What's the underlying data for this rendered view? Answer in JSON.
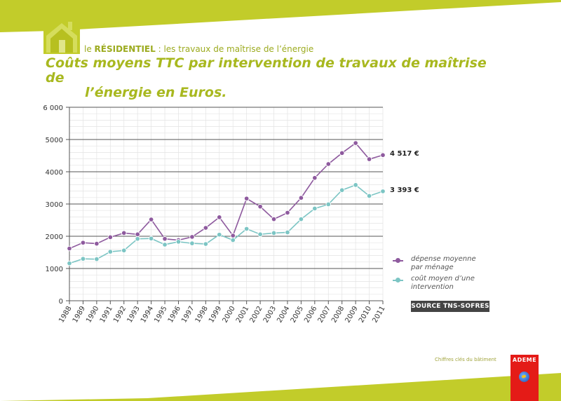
{
  "header": {
    "section_prefix": "le ",
    "section_name": "RÉSIDENTIEL",
    "section_suffix": " : les travaux de maîtrise de l’énergie",
    "title_line1": "Coûts moyens TTC par intervention de travaux de maîtrise de",
    "title_line2": "l’énergie en Euros."
  },
  "colors": {
    "accent": "#c2cc2a",
    "title": "#a8b81f",
    "series_menage": "#8e5a9e",
    "series_intervention": "#7cc5c4",
    "brand_red": "#e41b17",
    "badge": "#444444"
  },
  "icons": {
    "house": "house-icon",
    "globe": "globe-icon"
  },
  "chart_data": {
    "type": "line",
    "title": "",
    "xlabel": "",
    "ylabel": "",
    "ylim": [
      0,
      6000
    ],
    "yticks": [
      "0",
      "1000",
      "2000",
      "3000",
      "4000",
      "5000",
      "6 000"
    ],
    "ytick_values": [
      0,
      1000,
      2000,
      3000,
      4000,
      5000,
      6000
    ],
    "x": [
      "1988",
      "1989",
      "1990",
      "1991",
      "1992",
      "1993",
      "1994",
      "1995",
      "1996",
      "1997",
      "1998",
      "1999",
      "2000",
      "2001",
      "2002",
      "2003",
      "2004",
      "2005",
      "2006",
      "2007",
      "2008",
      "2009",
      "2010",
      "2011"
    ],
    "series": [
      {
        "name": "dépense moyenne par ménage",
        "legend_line1": "dépense moyenne",
        "legend_line2": "par ménage",
        "values": [
          1620,
          1800,
          1770,
          1970,
          2100,
          2060,
          2520,
          1920,
          1880,
          1980,
          2260,
          2590,
          2020,
          3170,
          2920,
          2530,
          2730,
          3190,
          3810,
          4240,
          4580,
          4890,
          4390,
          4517
        ],
        "end_label": "4 517 €"
      },
      {
        "name": "coût moyen d’une intervention",
        "legend_line1": "coût moyen d’une",
        "legend_line2": "intervention",
        "values": [
          1160,
          1300,
          1290,
          1520,
          1560,
          1920,
          1930,
          1740,
          1830,
          1780,
          1760,
          2050,
          1880,
          2230,
          2060,
          2100,
          2120,
          2530,
          2860,
          2990,
          3430,
          3590,
          3250,
          3393
        ],
        "end_label": "3 393 €"
      }
    ],
    "grid": true,
    "legend_position": "right"
  },
  "source": "SOURCE TNS-SOFRES",
  "footer": {
    "caption": "Chiffres clés du bâtiment",
    "brand": "ADEME"
  }
}
